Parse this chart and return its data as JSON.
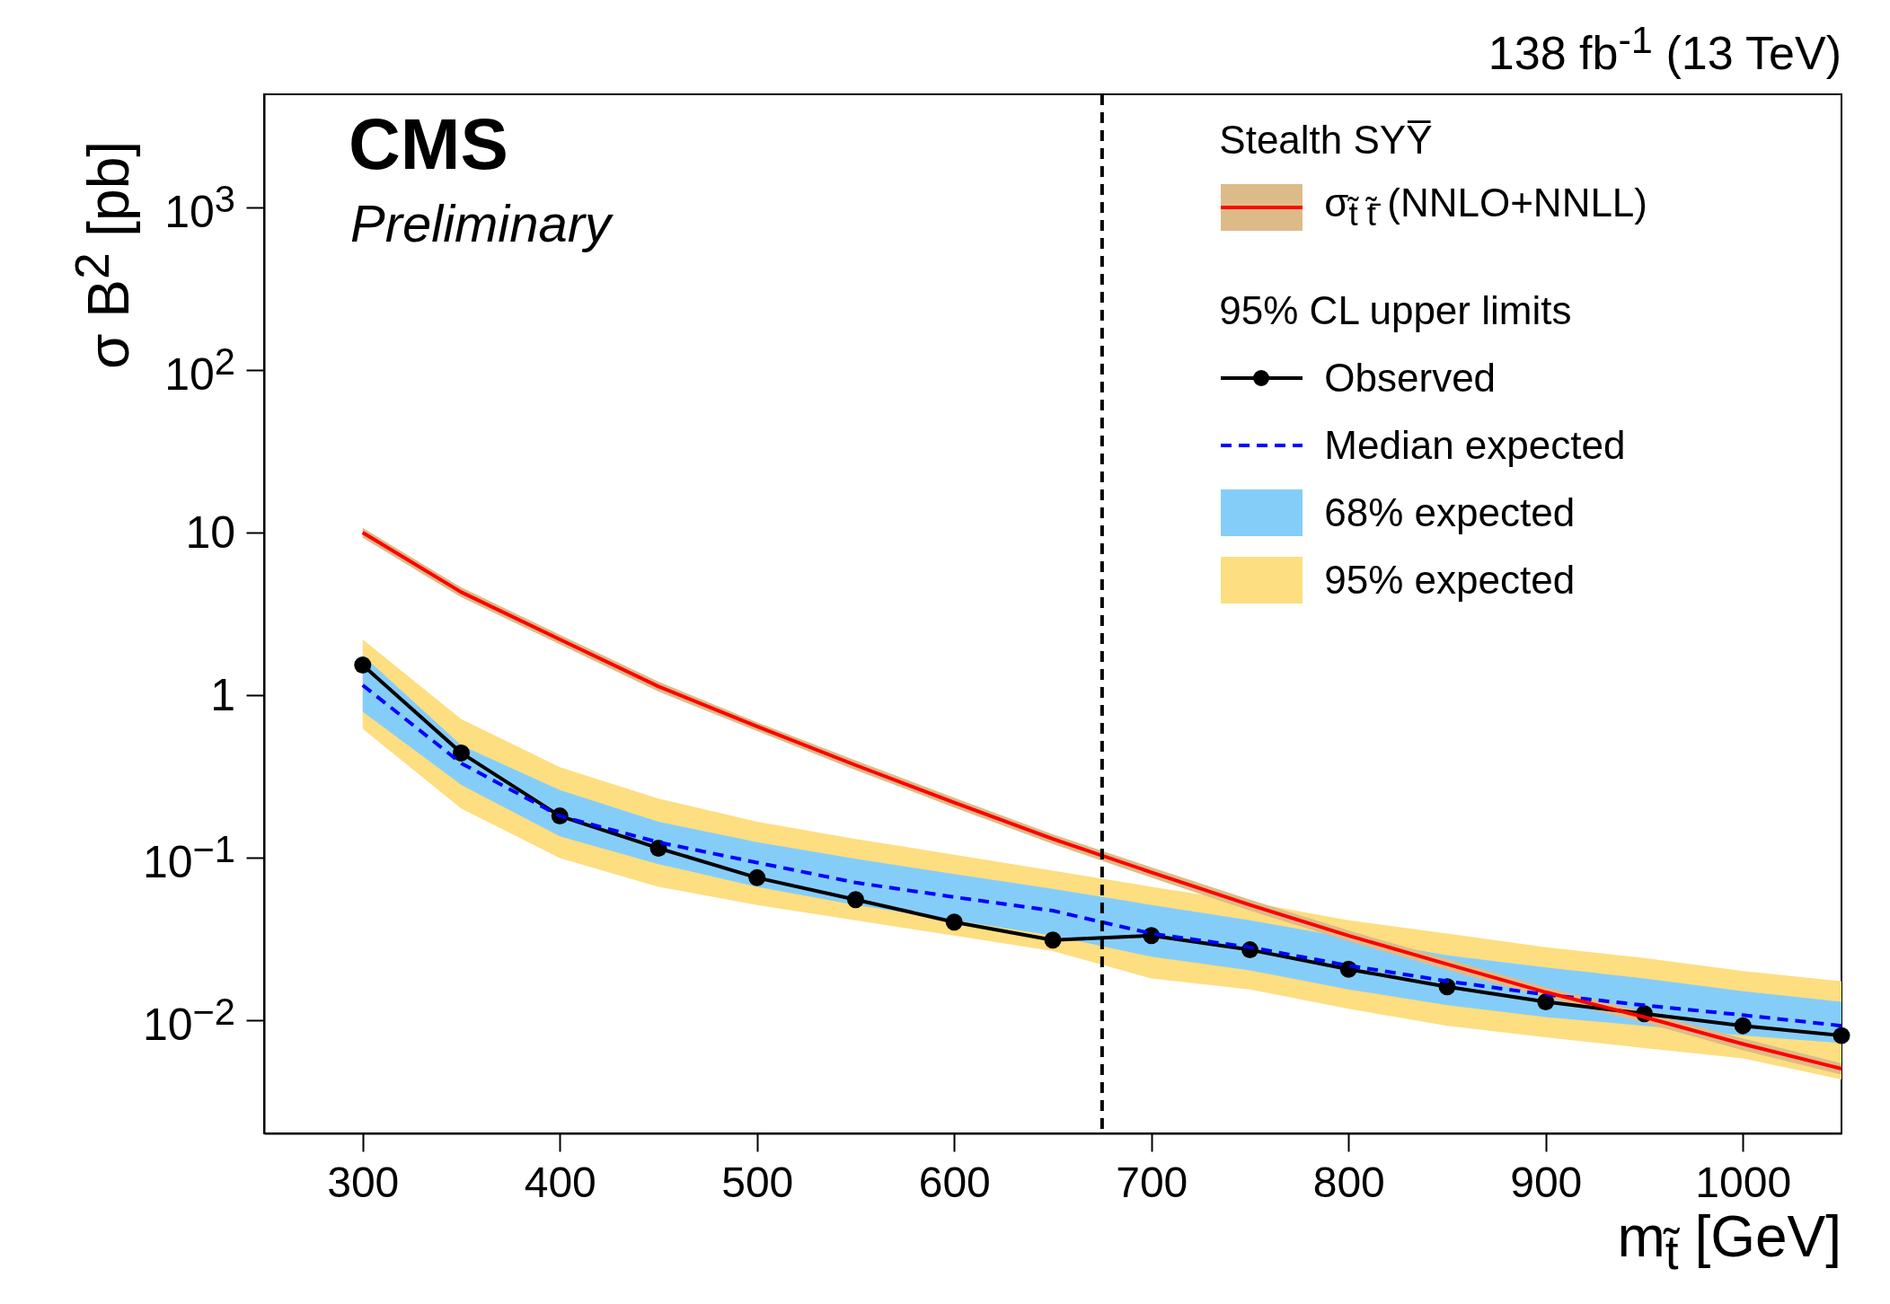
{
  "chart_data": {
    "type": "line",
    "subtitle": "138 fb$^{-1}$ (13 TeV)",
    "xlabel": "m$_{t̃}$ [GeV]",
    "ylabel": "σ B$^{2}$ [pb]",
    "legend_title": "Stealth SYY̅",
    "annotations": [
      "CMS",
      "Preliminary",
      "95% CL upper limits"
    ],
    "x": [
      300,
      350,
      400,
      450,
      500,
      550,
      600,
      650,
      700,
      750,
      800,
      850,
      900,
      950,
      1000,
      1050
    ],
    "xlim": [
      250,
      1050
    ],
    "ylim": [
      0.002,
      5000
    ],
    "log": true,
    "grid": false,
    "legend": "top right",
    "xticks": [
      300,
      400,
      500,
      600,
      700,
      800,
      900,
      1000
    ],
    "yticks": [
      {
        "value": 0.01,
        "label": "10$^{−2}$"
      },
      {
        "value": 0.1,
        "label": "10$^{−1}$"
      },
      1,
      10,
      {
        "value": 100,
        "label": "10$^{2}$"
      },
      {
        "value": 1000,
        "label": "10$^{3}$"
      }
    ],
    "ref_lines": [
      {
        "axis": "x",
        "value": 675,
        "color": "#000000",
        "line_style": "dashed"
      }
    ],
    "series": [
      {
        "color": "#ddbb88",
        "values": [
          null,
          null,
          null,
          null,
          null,
          null,
          null,
          null,
          null,
          null,
          null,
          null,
          null,
          null,
          null,
          null
        ],
        "lower": [
          9.3,
          4.0,
          2.05,
          1.05,
          0.6,
          0.345,
          0.203,
          0.121,
          0.075,
          0.047,
          0.0305,
          0.0203,
          0.0137,
          0.0096,
          0.0065,
          0.0046
        ],
        "upper": [
          10.7,
          4.6,
          2.35,
          1.21,
          0.68,
          0.395,
          0.233,
          0.139,
          0.087,
          0.055,
          0.0355,
          0.0237,
          0.0159,
          0.0112,
          0.0077,
          0.0054
        ]
      },
      {
        "name": "σ$_{t̃ t̃̄}$ (NNLO+NNLL)",
        "color": "#ff0000",
        "values": [
          10,
          4.3,
          2.2,
          1.13,
          0.64,
          0.37,
          0.218,
          0.13,
          0.081,
          0.051,
          0.033,
          0.022,
          0.0148,
          0.0104,
          0.0071,
          0.005
        ]
      },
      {
        "name": "Observed",
        "color": "#000000",
        "marker": "circle",
        "values": [
          1.53,
          0.44,
          0.18,
          0.114,
          0.075,
          0.055,
          0.04,
          0.031,
          0.033,
          0.027,
          0.0205,
          0.016,
          0.0129,
          0.0109,
          0.0092,
          0.008
        ]
      },
      {
        "name": "Median expected",
        "color": "#0000ff",
        "line_style": "dashed",
        "values": [
          1.15,
          0.38,
          0.18,
          0.124,
          0.093,
          0.07,
          0.057,
          0.047,
          0.034,
          0.028,
          0.0216,
          0.0173,
          0.0143,
          0.0123,
          0.0107,
          0.0092
        ]
      },
      {
        "name": "68% expected",
        "color": "#85cdf9",
        "values": [
          null,
          null,
          null,
          null,
          null,
          null,
          null,
          null,
          null,
          null,
          null,
          null,
          null,
          null,
          null,
          null
        ],
        "lower": [
          0.79,
          0.28,
          0.135,
          0.091,
          0.066,
          0.051,
          0.041,
          0.033,
          0.0245,
          0.0202,
          0.0154,
          0.0123,
          0.0104,
          0.0092,
          0.008,
          0.0072
        ],
        "upper": [
          1.76,
          0.49,
          0.26,
          0.166,
          0.124,
          0.098,
          0.079,
          0.064,
          0.051,
          0.041,
          0.032,
          0.025,
          0.021,
          0.018,
          0.015,
          0.0129
        ]
      },
      {
        "name": "95% expected",
        "color": "#fdde80",
        "values": [
          null,
          null,
          null,
          null,
          null,
          null,
          null,
          null,
          null,
          null,
          null,
          null,
          null,
          null,
          null,
          null
        ],
        "lower": [
          0.62,
          0.2,
          0.099,
          0.066,
          0.051,
          0.041,
          0.033,
          0.0265,
          0.018,
          0.0154,
          0.0117,
          0.0092,
          0.0078,
          0.0067,
          0.0058,
          0.0043
        ],
        "upper": [
          2.2,
          0.71,
          0.36,
          0.23,
          0.166,
          0.13,
          0.104,
          0.083,
          0.066,
          0.053,
          0.041,
          0.034,
          0.028,
          0.024,
          0.02,
          0.0173
        ]
      }
    ]
  }
}
